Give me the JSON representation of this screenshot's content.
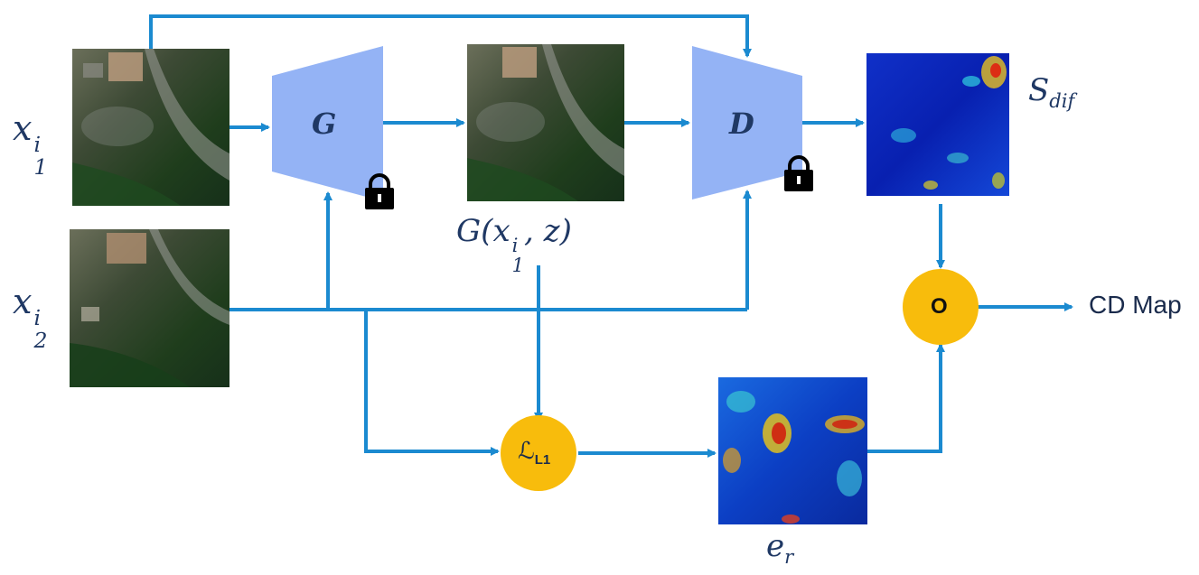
{
  "colors": {
    "arrow": "#1b8ad0",
    "trapezoid": "#94b3f5",
    "operator": "#f8bc0c",
    "label": "#1f3864"
  },
  "icons": [
    "lock-icon",
    "lock-icon"
  ],
  "inputs": {
    "x1": {
      "base": "x",
      "sub": "1",
      "sup": "i"
    },
    "x2": {
      "base": "x",
      "sub": "2",
      "sup": "i"
    }
  },
  "generator": {
    "label": "G"
  },
  "discriminator": {
    "label": "D"
  },
  "generated": {
    "label_prefix": "G(",
    "base": "x",
    "sub": "1",
    "sup": "i",
    "label_suffix": ", z)"
  },
  "score": {
    "base": "S",
    "sub": "dif"
  },
  "loss": {
    "symbol": "ℒ",
    "sub": "L1"
  },
  "error": {
    "base": "e",
    "sub": "r"
  },
  "fusion": {
    "label": "O"
  },
  "output": {
    "label": "CD Map"
  }
}
